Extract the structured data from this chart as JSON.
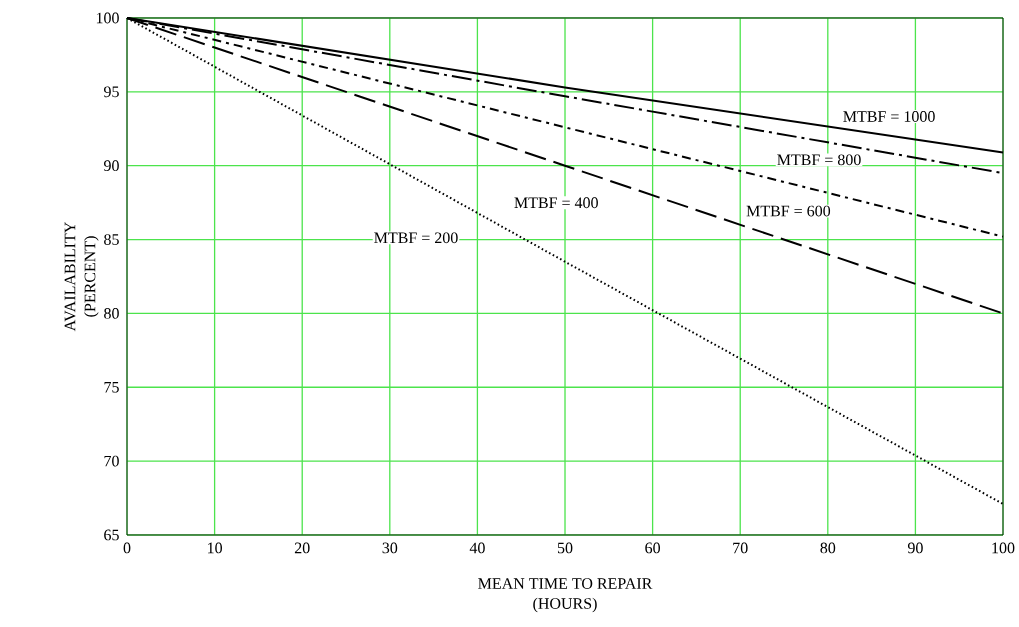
{
  "chart_data": {
    "type": "line",
    "xlabel": "MEAN TIME TO REPAIR\n(HOURS)",
    "ylabel": "AVAILABILITY\n(PERCENT)",
    "x": [
      0,
      50,
      100
    ],
    "series": [
      {
        "name": "MTBF = 1000",
        "color": "#000000",
        "values": [
          100,
          95.3,
          90.9
        ],
        "line_style": "solid"
      },
      {
        "name": "MTBF = 800",
        "color": "#000000",
        "values": [
          100,
          94.7,
          89.5
        ],
        "line_style": "long dashdot"
      },
      {
        "name": "MTBF = 600",
        "color": "#000000",
        "values": [
          100,
          92.6,
          85.2
        ],
        "line_style": "dashdot"
      },
      {
        "name": "MTBF = 400",
        "color": "#000000",
        "values": [
          100,
          90,
          80
        ],
        "line_style": "dashed"
      },
      {
        "name": "MTBF = 200",
        "color": "#000000",
        "values": [
          100,
          83.5,
          67.1
        ],
        "line_style": "dotted"
      }
    ],
    "xlim": [
      0,
      100
    ],
    "ylim": [
      65,
      100
    ],
    "xticks": [
      0,
      10,
      20,
      30,
      40,
      50,
      60,
      70,
      80,
      90,
      100
    ],
    "yticks": [
      65,
      70,
      75,
      80,
      85,
      90,
      95,
      100
    ],
    "grid": true,
    "legend": false,
    "marker": "none"
  }
}
